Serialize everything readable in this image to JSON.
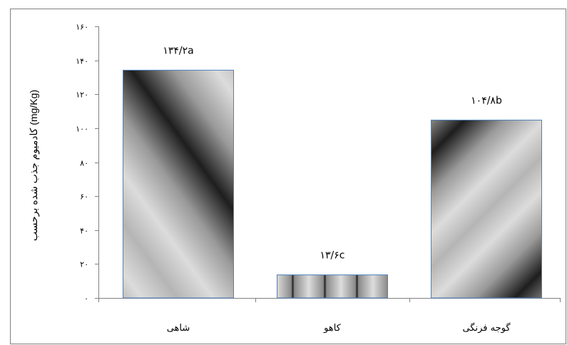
{
  "chart_data": {
    "type": "bar",
    "title": "",
    "ylabel": "کادمیوم جذب شده برحسب (mg/Kg)",
    "xlabel": "",
    "ylim": [
      0,
      160
    ],
    "yticks": [
      0,
      20,
      40,
      60,
      80,
      100,
      120,
      140,
      160
    ],
    "ytick_labels": [
      "۰",
      "۲۰",
      "۴۰",
      "۶۰",
      "۸۰",
      "۱۰۰",
      "۱۲۰",
      "۱۴۰",
      "۱۶۰"
    ],
    "grid": false,
    "legend": "none",
    "categories": [
      "شاهی",
      "کاهو",
      "گوجه فرنگی"
    ],
    "values": [
      134.2,
      13.6,
      104.8
    ],
    "data_labels": [
      "۱۳۴/۲a",
      "۱۳/۶c",
      "۱۰۴/۸b"
    ]
  },
  "colors": {
    "frame": "#808080",
    "bar_border": "#4f81bd",
    "axis": "#808080",
    "pattern_dark": "#2a2a2a",
    "pattern_light": "#e6e6e6"
  }
}
